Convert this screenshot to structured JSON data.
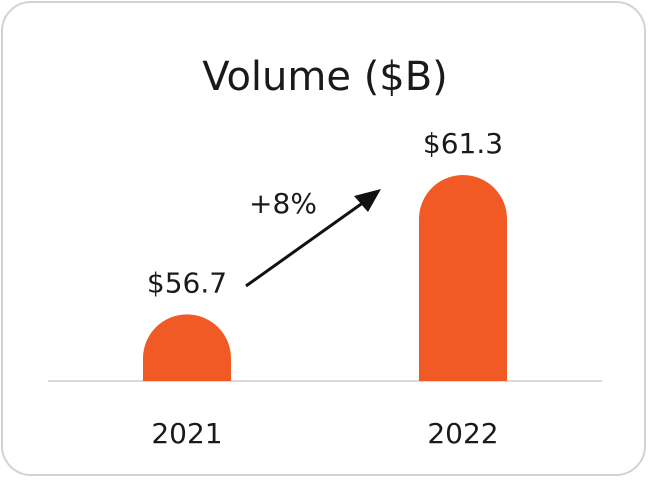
{
  "chart_data": {
    "type": "bar",
    "title": "Volume ($B)",
    "categories": [
      "2021",
      "2022"
    ],
    "values": [
      56.7,
      61.3
    ],
    "value_labels": [
      "$56.7",
      "$61.3"
    ],
    "annotation": "+8%",
    "xlabel": "",
    "ylabel": "",
    "ylim": [
      54.5,
      61.3
    ],
    "grid": false,
    "legend": "none",
    "bar_color": "#f15a24",
    "axis_color": "#d9d9d9",
    "arrow_color": "#111111"
  }
}
